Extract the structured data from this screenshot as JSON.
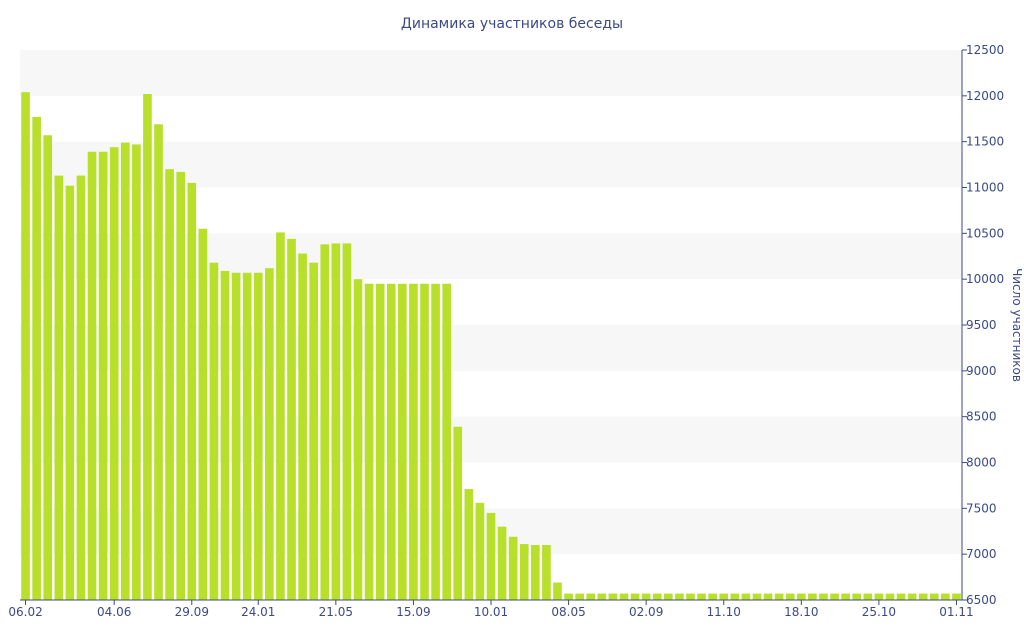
{
  "chart_data": {
    "type": "bar",
    "title": "Динамика участников беседы",
    "ylabel": "Число участников",
    "xlabel": "",
    "ylim": [
      6500,
      12500
    ],
    "y_ticks": [
      12500,
      12000,
      11500,
      11000,
      10500,
      10000,
      9500,
      9000,
      8500,
      8000,
      7500,
      7000,
      6500
    ],
    "y_axis_position": "right",
    "grid": "horizontal-bands",
    "x_tick_labels": [
      {
        "index": 0,
        "label": "06.02"
      },
      {
        "index": 8,
        "label": "04.06"
      },
      {
        "index": 15,
        "label": "29.09"
      },
      {
        "index": 21,
        "label": "24.01"
      },
      {
        "index": 28,
        "label": "21.05"
      },
      {
        "index": 35,
        "label": "15.09"
      },
      {
        "index": 42,
        "label": "10.01"
      },
      {
        "index": 49,
        "label": "08.05"
      },
      {
        "index": 56,
        "label": "02.09"
      },
      {
        "index": 63,
        "label": "11.10"
      },
      {
        "index": 70,
        "label": "18.10"
      },
      {
        "index": 77,
        "label": "25.10"
      },
      {
        "index": 84,
        "label": "01.11"
      }
    ],
    "values": [
      12040,
      11770,
      11570,
      11130,
      11020,
      11130,
      11390,
      11390,
      11440,
      11490,
      11470,
      12020,
      11690,
      11200,
      11170,
      11050,
      10550,
      10180,
      10090,
      10070,
      10070,
      10070,
      10120,
      10510,
      10440,
      10280,
      10180,
      10380,
      10390,
      10390,
      10000,
      9950,
      9950,
      9950,
      9950,
      9950,
      9950,
      9950,
      9950,
      8390,
      7710,
      7560,
      7450,
      7300,
      7190,
      7110,
      7100,
      7100,
      6690,
      6570,
      6570,
      6570,
      6570,
      6570,
      6570,
      6570,
      6570,
      6570,
      6570,
      6570,
      6570,
      6570,
      6570,
      6570,
      6570,
      6570,
      6570,
      6570,
      6570,
      6570,
      6570,
      6570,
      6570,
      6570,
      6570,
      6570,
      6570,
      6570,
      6570,
      6570,
      6570,
      6570,
      6570,
      6570,
      6570
    ],
    "colors": {
      "bar": "#b8e02a",
      "band": "#f7f7f7",
      "axis": "#3b4a87",
      "text": "#3b4a87"
    }
  }
}
